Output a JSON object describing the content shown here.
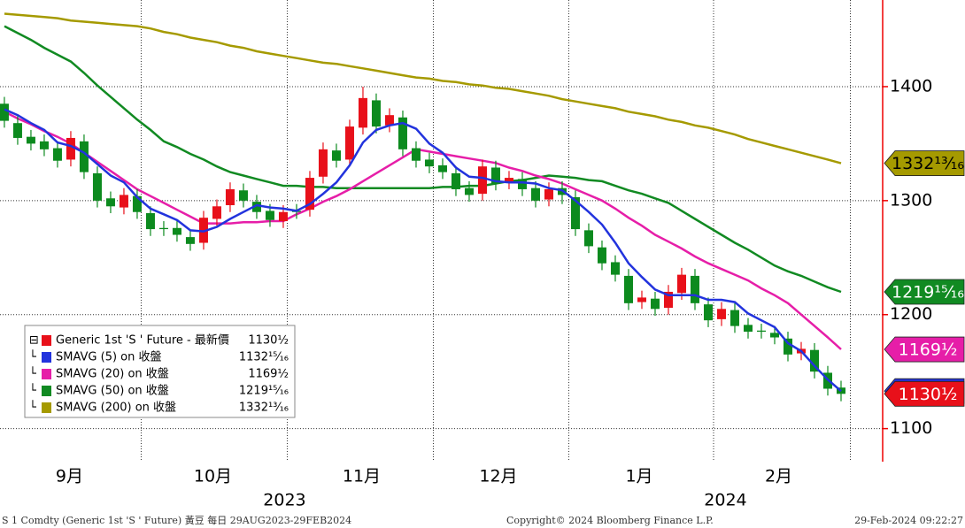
{
  "chart_data": {
    "type": "candlestick",
    "candles": {
      "name": "Generic 1st 'S ' Future - 最新價",
      "last_label": "1130½",
      "up_color": "#e8101a",
      "down_color": "#0c8a1e",
      "open": [
        1385,
        1368,
        1356,
        1352,
        1346,
        1336,
        1352,
        1324,
        1302,
        1294,
        1304,
        1289,
        1276,
        1276,
        1268,
        1263,
        1284,
        1296,
        1309,
        1299,
        1291,
        1282,
        1291,
        1292,
        1321,
        1344,
        1336,
        1364,
        1388,
        1366,
        1373,
        1346,
        1336,
        1331,
        1324,
        1311,
        1306,
        1329,
        1316,
        1319,
        1311,
        1301,
        1311,
        1303,
        1274,
        1259,
        1246,
        1234,
        1211,
        1214,
        1206,
        1219,
        1234,
        1209,
        1196,
        1204,
        1191,
        1186,
        1184,
        1179,
        1166,
        1169,
        1149,
        1136
      ],
      "high": [
        1391,
        1374,
        1362,
        1358,
        1352,
        1361,
        1358,
        1330,
        1308,
        1311,
        1310,
        1295,
        1282,
        1282,
        1274,
        1291,
        1301,
        1316,
        1315,
        1305,
        1297,
        1296,
        1297,
        1326,
        1351,
        1350,
        1371,
        1400,
        1394,
        1381,
        1379,
        1352,
        1342,
        1337,
        1330,
        1317,
        1336,
        1335,
        1326,
        1325,
        1317,
        1316,
        1317,
        1309,
        1280,
        1265,
        1252,
        1240,
        1221,
        1220,
        1226,
        1241,
        1240,
        1215,
        1211,
        1210,
        1197,
        1192,
        1190,
        1185,
        1176,
        1175,
        1155,
        1142
      ],
      "low": [
        1364,
        1349,
        1344,
        1339,
        1329,
        1330,
        1319,
        1294,
        1289,
        1288,
        1284,
        1269,
        1269,
        1264,
        1256,
        1257,
        1278,
        1290,
        1294,
        1284,
        1277,
        1276,
        1284,
        1286,
        1315,
        1329,
        1330,
        1358,
        1359,
        1360,
        1339,
        1329,
        1324,
        1319,
        1304,
        1299,
        1300,
        1309,
        1310,
        1304,
        1294,
        1295,
        1297,
        1269,
        1254,
        1239,
        1229,
        1204,
        1205,
        1199,
        1200,
        1213,
        1204,
        1189,
        1190,
        1184,
        1179,
        1179,
        1174,
        1159,
        1160,
        1144,
        1129,
        1124
      ],
      "close": [
        1370,
        1355,
        1350,
        1345,
        1335,
        1355,
        1325,
        1300,
        1295,
        1305,
        1290,
        1275,
        1275,
        1270,
        1262,
        1285,
        1295,
        1310,
        1300,
        1290,
        1283,
        1290,
        1290,
        1320,
        1345,
        1335,
        1365,
        1390,
        1365,
        1375,
        1345,
        1335,
        1330,
        1325,
        1310,
        1305,
        1330,
        1315,
        1320,
        1310,
        1300,
        1310,
        1305,
        1275,
        1260,
        1245,
        1235,
        1210,
        1215,
        1205,
        1220,
        1235,
        1210,
        1195,
        1205,
        1190,
        1185,
        1185,
        1180,
        1165,
        1170,
        1150,
        1135,
        1130.5
      ]
    },
    "series": [
      {
        "name": "SMAVG (5)  on 收盤",
        "color": "#2233dd",
        "last_label": "1132¹⁵⁄₁₆",
        "values": [
          1380,
          1375,
          1368,
          1362,
          1351,
          1348,
          1342,
          1332,
          1322,
          1316,
          1303,
          1293,
          1288,
          1283,
          1274,
          1273,
          1277,
          1284,
          1290,
          1296,
          1294,
          1293,
          1291,
          1297,
          1306,
          1316,
          1331,
          1351,
          1362,
          1366,
          1368,
          1363,
          1350,
          1342,
          1329,
          1321,
          1320,
          1317,
          1316,
          1316,
          1315,
          1311,
          1309,
          1300,
          1290,
          1279,
          1263,
          1245,
          1233,
          1222,
          1217,
          1217,
          1217,
          1213,
          1213,
          1211,
          1201,
          1195,
          1189,
          1175,
          1168,
          1155,
          1143,
          1132.9375
        ]
      },
      {
        "name": "SMAVG (20)  on 收盤",
        "color": "#e61ea8",
        "last_label": "1169½",
        "values": [
          1378,
          1372,
          1367,
          1361,
          1356,
          1350,
          1342,
          1334,
          1326,
          1318,
          1310,
          1304,
          1298,
          1292,
          1286,
          1280,
          1280,
          1280,
          1281,
          1281,
          1282,
          1282,
          1288,
          1293,
          1299,
          1304,
          1310,
          1317,
          1324,
          1331,
          1338,
          1345,
          1343,
          1341,
          1339,
          1337,
          1335,
          1333,
          1329,
          1326,
          1322,
          1319,
          1315,
          1310,
          1305,
          1300,
          1293,
          1285,
          1278,
          1270,
          1264,
          1258,
          1251,
          1245,
          1240,
          1235,
          1230,
          1223,
          1217,
          1210,
          1200,
          1190,
          1180,
          1169.5
        ]
      },
      {
        "name": "SMAVG (50)  on 收盤",
        "color": "#118a22",
        "last_label": "1219¹⁵⁄₁₆",
        "values": [
          1453,
          1447,
          1441,
          1434,
          1428,
          1422,
          1412,
          1401,
          1391,
          1381,
          1371,
          1362,
          1352,
          1347,
          1341,
          1336,
          1330,
          1325,
          1322,
          1319,
          1316,
          1313,
          1313,
          1312,
          1312,
          1311,
          1311,
          1311,
          1311,
          1311,
          1311,
          1311,
          1311,
          1312,
          1312,
          1313,
          1313,
          1315,
          1317,
          1318,
          1320,
          1322,
          1321,
          1320,
          1318,
          1317,
          1313,
          1309,
          1306,
          1302,
          1298,
          1291,
          1284,
          1277,
          1270,
          1263,
          1257,
          1250,
          1243,
          1238,
          1234,
          1229,
          1224,
          1219.9375
        ]
      },
      {
        "name": "SMAVG (200)  on 收盤",
        "color": "#a59a00",
        "last_label": "1332¹³⁄₁₆",
        "values": [
          1464,
          1463,
          1462,
          1461,
          1460,
          1458,
          1457,
          1456,
          1455,
          1454,
          1453,
          1451,
          1448,
          1446,
          1443,
          1441,
          1439,
          1436,
          1434,
          1431,
          1429,
          1427,
          1425,
          1423,
          1421,
          1420,
          1418,
          1416,
          1414,
          1412,
          1410,
          1408,
          1407,
          1405,
          1404,
          1402,
          1401,
          1399,
          1398,
          1396,
          1394,
          1392,
          1389,
          1387,
          1385,
          1383,
          1381,
          1378,
          1376,
          1374,
          1371,
          1369,
          1366,
          1364,
          1361,
          1358,
          1354,
          1351,
          1348,
          1345,
          1342,
          1339,
          1336,
          1332.8125
        ]
      }
    ],
    "ylim": [
      1071,
      1476
    ],
    "yticks": [
      1100,
      1200,
      1300,
      1400
    ],
    "xlim": [
      -0.33,
      66
    ],
    "xticks": [
      {
        "value": 4.9,
        "label": "9月"
      },
      {
        "value": 15.7,
        "label": "10月"
      },
      {
        "value": 26.9,
        "label": "11月"
      },
      {
        "value": 37.2,
        "label": "12月"
      },
      {
        "value": 47.8,
        "label": "1月"
      },
      {
        "value": 58.3,
        "label": "2月"
      }
    ],
    "years": [
      {
        "value": 21.1,
        "label": "2023"
      },
      {
        "value": 54.3,
        "label": "2024"
      }
    ],
    "xgrid": [
      10.3,
      21.3,
      32.3,
      42.5,
      53.4,
      63.7
    ],
    "grid": true
  },
  "footer": {
    "left": "S 1 Comdty (Generic 1st 'S ' Future) 黃豆  每日 29AUG2023-29FEB2024",
    "center": "Copyright© 2024 Bloomberg Finance L.P.",
    "right": "29-Feb-2024 09:22:27"
  }
}
